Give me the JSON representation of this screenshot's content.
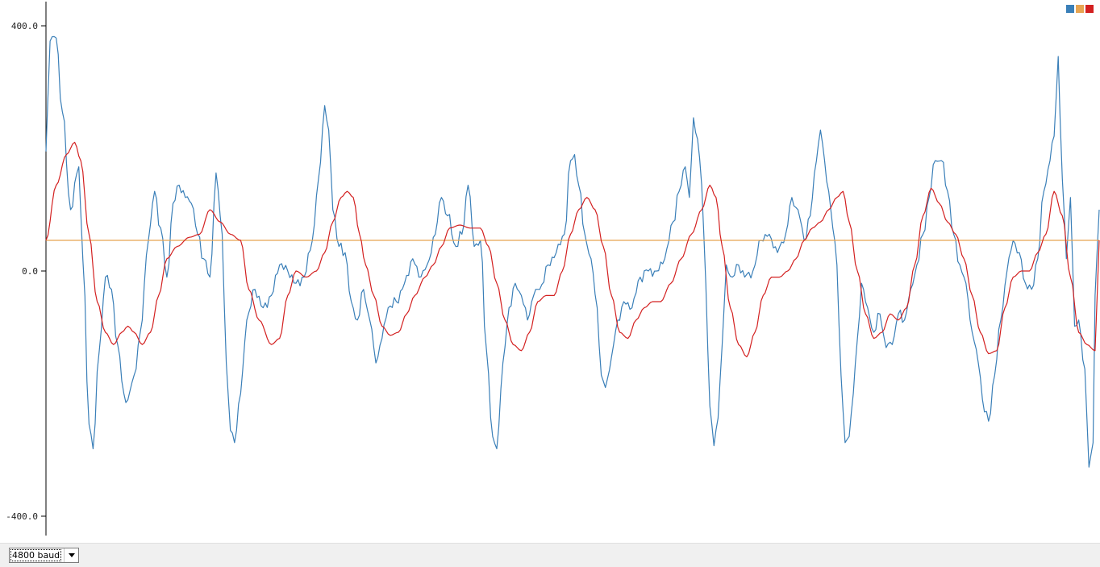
{
  "colors": {
    "background": "#ffffff",
    "axis": "#000000",
    "bottom_bar": "#f0f0f0"
  },
  "baud_select": {
    "value": "4800 baud"
  },
  "chart_data": {
    "type": "line",
    "ylim": [
      -435,
      435
    ],
    "y_ticks": [
      {
        "value": 400,
        "label": "400.0"
      },
      {
        "value": 0,
        "label": "0.0"
      },
      {
        "value": -400,
        "label": "-400.0"
      }
    ],
    "legend_placement": "top-right",
    "grid": false,
    "x_count": 514,
    "series": [
      {
        "color": "#3a7fb8",
        "keypoints": [
          [
            0,
            195
          ],
          [
            2,
            375
          ],
          [
            5,
            380
          ],
          [
            8,
            260
          ],
          [
            12,
            100
          ],
          [
            16,
            170
          ],
          [
            18,
            20
          ],
          [
            21,
            -250
          ],
          [
            23,
            -290
          ],
          [
            26,
            -130
          ],
          [
            29,
            -10
          ],
          [
            32,
            -30
          ],
          [
            35,
            -120
          ],
          [
            38,
            -200
          ],
          [
            40,
            -210
          ],
          [
            43,
            -170
          ],
          [
            46,
            -100
          ],
          [
            50,
            50
          ],
          [
            53,
            130
          ],
          [
            56,
            70
          ],
          [
            59,
            -10
          ],
          [
            62,
            110
          ],
          [
            65,
            140
          ],
          [
            68,
            120
          ],
          [
            71,
            110
          ],
          [
            74,
            60
          ],
          [
            77,
            20
          ],
          [
            80,
            -10
          ],
          [
            83,
            160
          ],
          [
            86,
            60
          ],
          [
            88,
            -150
          ],
          [
            90,
            -260
          ],
          [
            92,
            -280
          ],
          [
            95,
            -200
          ],
          [
            98,
            -80
          ],
          [
            102,
            -30
          ],
          [
            106,
            -60
          ],
          [
            110,
            -40
          ],
          [
            114,
            10
          ],
          [
            118,
            0
          ],
          [
            122,
            -20
          ],
          [
            126,
            -10
          ],
          [
            130,
            50
          ],
          [
            133,
            150
          ],
          [
            136,
            270
          ],
          [
            138,
            230
          ],
          [
            140,
            100
          ],
          [
            143,
            40
          ],
          [
            146,
            30
          ],
          [
            149,
            -50
          ],
          [
            152,
            -80
          ],
          [
            155,
            -30
          ],
          [
            158,
            -80
          ],
          [
            161,
            -150
          ],
          [
            164,
            -110
          ],
          [
            167,
            -60
          ],
          [
            171,
            -50
          ],
          [
            175,
            -20
          ],
          [
            179,
            20
          ],
          [
            182,
            -10
          ],
          [
            186,
            10
          ],
          [
            190,
            60
          ],
          [
            193,
            120
          ],
          [
            196,
            90
          ],
          [
            200,
            40
          ],
          [
            203,
            60
          ],
          [
            206,
            140
          ],
          [
            209,
            40
          ],
          [
            212,
            50
          ],
          [
            215,
            -130
          ],
          [
            218,
            -270
          ],
          [
            220,
            -290
          ],
          [
            223,
            -150
          ],
          [
            226,
            -60
          ],
          [
            229,
            -20
          ],
          [
            232,
            -40
          ],
          [
            235,
            -80
          ],
          [
            238,
            -40
          ],
          [
            241,
            -30
          ],
          [
            245,
            10
          ],
          [
            249,
            30
          ],
          [
            253,
            60
          ],
          [
            256,
            180
          ],
          [
            258,
            190
          ],
          [
            260,
            140
          ],
          [
            263,
            60
          ],
          [
            266,
            20
          ],
          [
            269,
            -60
          ],
          [
            271,
            -170
          ],
          [
            273,
            -190
          ],
          [
            276,
            -140
          ],
          [
            279,
            -80
          ],
          [
            282,
            -50
          ],
          [
            286,
            -60
          ],
          [
            290,
            -10
          ],
          [
            294,
            0
          ],
          [
            298,
            0
          ],
          [
            302,
            20
          ],
          [
            306,
            80
          ],
          [
            309,
            130
          ],
          [
            312,
            170
          ],
          [
            314,
            120
          ],
          [
            316,
            250
          ],
          [
            318,
            215
          ],
          [
            320,
            140
          ],
          [
            322,
            -20
          ],
          [
            324,
            -220
          ],
          [
            326,
            -285
          ],
          [
            328,
            -240
          ],
          [
            330,
            -120
          ],
          [
            332,
            10
          ],
          [
            335,
            -10
          ],
          [
            338,
            10
          ],
          [
            341,
            -10
          ],
          [
            345,
            0
          ],
          [
            349,
            50
          ],
          [
            353,
            60
          ],
          [
            357,
            30
          ],
          [
            361,
            60
          ],
          [
            364,
            120
          ],
          [
            367,
            100
          ],
          [
            370,
            50
          ],
          [
            373,
            90
          ],
          [
            376,
            180
          ],
          [
            378,
            230
          ],
          [
            380,
            180
          ],
          [
            382,
            130
          ],
          [
            384,
            70
          ],
          [
            386,
            10
          ],
          [
            388,
            -170
          ],
          [
            390,
            -280
          ],
          [
            392,
            -270
          ],
          [
            394,
            -200
          ],
          [
            396,
            -110
          ],
          [
            398,
            -20
          ],
          [
            401,
            -60
          ],
          [
            404,
            -100
          ],
          [
            407,
            -70
          ],
          [
            410,
            -125
          ],
          [
            413,
            -120
          ],
          [
            416,
            -70
          ],
          [
            419,
            -80
          ],
          [
            422,
            -30
          ],
          [
            425,
            10
          ],
          [
            428,
            60
          ],
          [
            431,
            120
          ],
          [
            434,
            180
          ],
          [
            437,
            180
          ],
          [
            440,
            130
          ],
          [
            443,
            60
          ],
          [
            446,
            10
          ],
          [
            449,
            -20
          ],
          [
            452,
            -100
          ],
          [
            455,
            -150
          ],
          [
            458,
            -230
          ],
          [
            460,
            -245
          ],
          [
            463,
            -170
          ],
          [
            466,
            -80
          ],
          [
            469,
            0
          ],
          [
            472,
            50
          ],
          [
            475,
            30
          ],
          [
            478,
            -20
          ],
          [
            481,
            -30
          ],
          [
            484,
            20
          ],
          [
            487,
            130
          ],
          [
            490,
            180
          ],
          [
            492,
            220
          ],
          [
            494,
            350
          ],
          [
            496,
            150
          ],
          [
            498,
            20
          ],
          [
            500,
            120
          ],
          [
            502,
            -90
          ],
          [
            504,
            -80
          ],
          [
            507,
            -160
          ],
          [
            509,
            -320
          ],
          [
            511,
            -280
          ],
          [
            512,
            -40
          ],
          [
            514,
            100
          ]
        ]
      },
      {
        "color": "#e8a552",
        "keypoints": [
          [
            0,
            50
          ],
          [
            514,
            50
          ]
        ]
      },
      {
        "color": "#d32020",
        "keypoints": [
          [
            0,
            50
          ],
          [
            5,
            140
          ],
          [
            10,
            190
          ],
          [
            14,
            210
          ],
          [
            17,
            180
          ],
          [
            21,
            60
          ],
          [
            25,
            -50
          ],
          [
            29,
            -100
          ],
          [
            33,
            -120
          ],
          [
            37,
            -100
          ],
          [
            40,
            -90
          ],
          [
            43,
            -100
          ],
          [
            47,
            -120
          ],
          [
            51,
            -100
          ],
          [
            55,
            -40
          ],
          [
            59,
            20
          ],
          [
            64,
            40
          ],
          [
            70,
            55
          ],
          [
            75,
            60
          ],
          [
            80,
            100
          ],
          [
            85,
            80
          ],
          [
            90,
            60
          ],
          [
            95,
            50
          ],
          [
            99,
            -30
          ],
          [
            104,
            -80
          ],
          [
            110,
            -120
          ],
          [
            114,
            -110
          ],
          [
            118,
            -40
          ],
          [
            122,
            0
          ],
          [
            127,
            -10
          ],
          [
            132,
            0
          ],
          [
            136,
            30
          ],
          [
            140,
            80
          ],
          [
            144,
            120
          ],
          [
            147,
            130
          ],
          [
            150,
            120
          ],
          [
            153,
            60
          ],
          [
            156,
            10
          ],
          [
            160,
            -40
          ],
          [
            164,
            -90
          ],
          [
            168,
            -105
          ],
          [
            172,
            -100
          ],
          [
            176,
            -70
          ],
          [
            180,
            -40
          ],
          [
            185,
            -10
          ],
          [
            189,
            10
          ],
          [
            193,
            40
          ],
          [
            197,
            70
          ],
          [
            202,
            75
          ],
          [
            207,
            70
          ],
          [
            212,
            70
          ],
          [
            216,
            40
          ],
          [
            220,
            -20
          ],
          [
            224,
            -80
          ],
          [
            228,
            -120
          ],
          [
            232,
            -130
          ],
          [
            236,
            -100
          ],
          [
            240,
            -50
          ],
          [
            244,
            -40
          ],
          [
            248,
            -40
          ],
          [
            252,
            0
          ],
          [
            256,
            60
          ],
          [
            260,
            100
          ],
          [
            264,
            120
          ],
          [
            268,
            100
          ],
          [
            272,
            40
          ],
          [
            276,
            -40
          ],
          [
            280,
            -100
          ],
          [
            284,
            -110
          ],
          [
            288,
            -80
          ],
          [
            292,
            -60
          ],
          [
            296,
            -50
          ],
          [
            300,
            -50
          ],
          [
            305,
            -20
          ],
          [
            310,
            20
          ],
          [
            315,
            60
          ],
          [
            320,
            100
          ],
          [
            324,
            140
          ],
          [
            327,
            120
          ],
          [
            330,
            40
          ],
          [
            334,
            -60
          ],
          [
            338,
            -120
          ],
          [
            342,
            -140
          ],
          [
            346,
            -100
          ],
          [
            350,
            -40
          ],
          [
            354,
            -10
          ],
          [
            358,
            -10
          ],
          [
            362,
            0
          ],
          [
            366,
            20
          ],
          [
            370,
            50
          ],
          [
            374,
            70
          ],
          [
            378,
            80
          ],
          [
            382,
            100
          ],
          [
            386,
            120
          ],
          [
            389,
            130
          ],
          [
            392,
            80
          ],
          [
            396,
            0
          ],
          [
            400,
            -70
          ],
          [
            404,
            -110
          ],
          [
            408,
            -100
          ],
          [
            412,
            -70
          ],
          [
            416,
            -80
          ],
          [
            420,
            -60
          ],
          [
            424,
            10
          ],
          [
            428,
            90
          ],
          [
            432,
            135
          ],
          [
            436,
            110
          ],
          [
            440,
            80
          ],
          [
            444,
            60
          ],
          [
            448,
            20
          ],
          [
            452,
            -40
          ],
          [
            456,
            -100
          ],
          [
            460,
            -135
          ],
          [
            464,
            -130
          ],
          [
            468,
            -60
          ],
          [
            472,
            -10
          ],
          [
            476,
            0
          ],
          [
            480,
            0
          ],
          [
            484,
            30
          ],
          [
            488,
            60
          ],
          [
            492,
            130
          ],
          [
            496,
            90
          ],
          [
            500,
            -10
          ],
          [
            504,
            -100
          ],
          [
            508,
            -120
          ],
          [
            512,
            -130
          ],
          [
            514,
            50
          ]
        ]
      }
    ]
  }
}
